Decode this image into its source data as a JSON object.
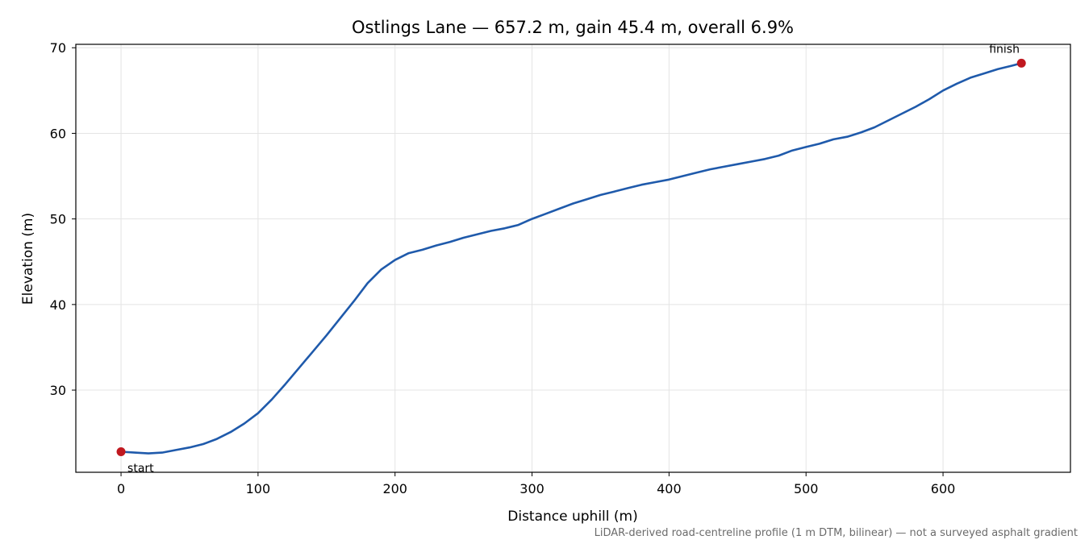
{
  "chart_data": {
    "type": "line",
    "title": "Ostlings Lane — 657.2 m, gain 45.4 m, overall 6.9%",
    "xlabel": "Distance uphill (m)",
    "ylabel": "Elevation (m)",
    "xlim": [
      -33,
      693
    ],
    "ylim": [
      20.4,
      70.4
    ],
    "xticks": [
      0,
      100,
      200,
      300,
      400,
      500,
      600
    ],
    "yticks": [
      30,
      40,
      50,
      60,
      70
    ],
    "grid": true,
    "line_color": "#1f5aab",
    "marker_color": "#c0181f",
    "series": [
      {
        "x": [
          0,
          10,
          20,
          30,
          40,
          50,
          60,
          70,
          80,
          90,
          100,
          110,
          120,
          130,
          140,
          150,
          160,
          170,
          180,
          190,
          200,
          210,
          220,
          230,
          240,
          250,
          260,
          270,
          280,
          290,
          300,
          310,
          320,
          330,
          340,
          350,
          360,
          370,
          380,
          390,
          400,
          410,
          420,
          430,
          440,
          450,
          460,
          470,
          480,
          490,
          500,
          510,
          520,
          530,
          540,
          550,
          560,
          570,
          580,
          590,
          600,
          610,
          620,
          630,
          640,
          650,
          657.2
        ],
        "y": [
          22.8,
          22.7,
          22.6,
          22.7,
          23.0,
          23.3,
          23.7,
          24.3,
          25.1,
          26.1,
          27.3,
          28.9,
          30.7,
          32.6,
          34.5,
          36.4,
          38.4,
          40.4,
          42.5,
          44.1,
          45.2,
          46.0,
          46.4,
          46.9,
          47.3,
          47.8,
          48.2,
          48.6,
          48.9,
          49.3,
          50.0,
          50.6,
          51.2,
          51.8,
          52.3,
          52.8,
          53.2,
          53.6,
          54.0,
          54.3,
          54.6,
          55.0,
          55.4,
          55.8,
          56.1,
          56.4,
          56.7,
          57.0,
          57.4,
          58.0,
          58.4,
          58.8,
          59.3,
          59.6,
          60.1,
          60.7,
          61.5,
          62.3,
          63.1,
          64.0,
          65.0,
          65.8,
          66.5,
          67.0,
          67.5,
          67.9,
          68.2
        ]
      }
    ],
    "annotations": [
      {
        "text": "start",
        "x": 0,
        "y": 22.8
      },
      {
        "text": "finish",
        "x": 657.2,
        "y": 68.2
      }
    ],
    "footnote": "LiDAR-derived road-centreline profile (1 m DTM, bilinear) — not a surveyed asphalt gradient"
  }
}
